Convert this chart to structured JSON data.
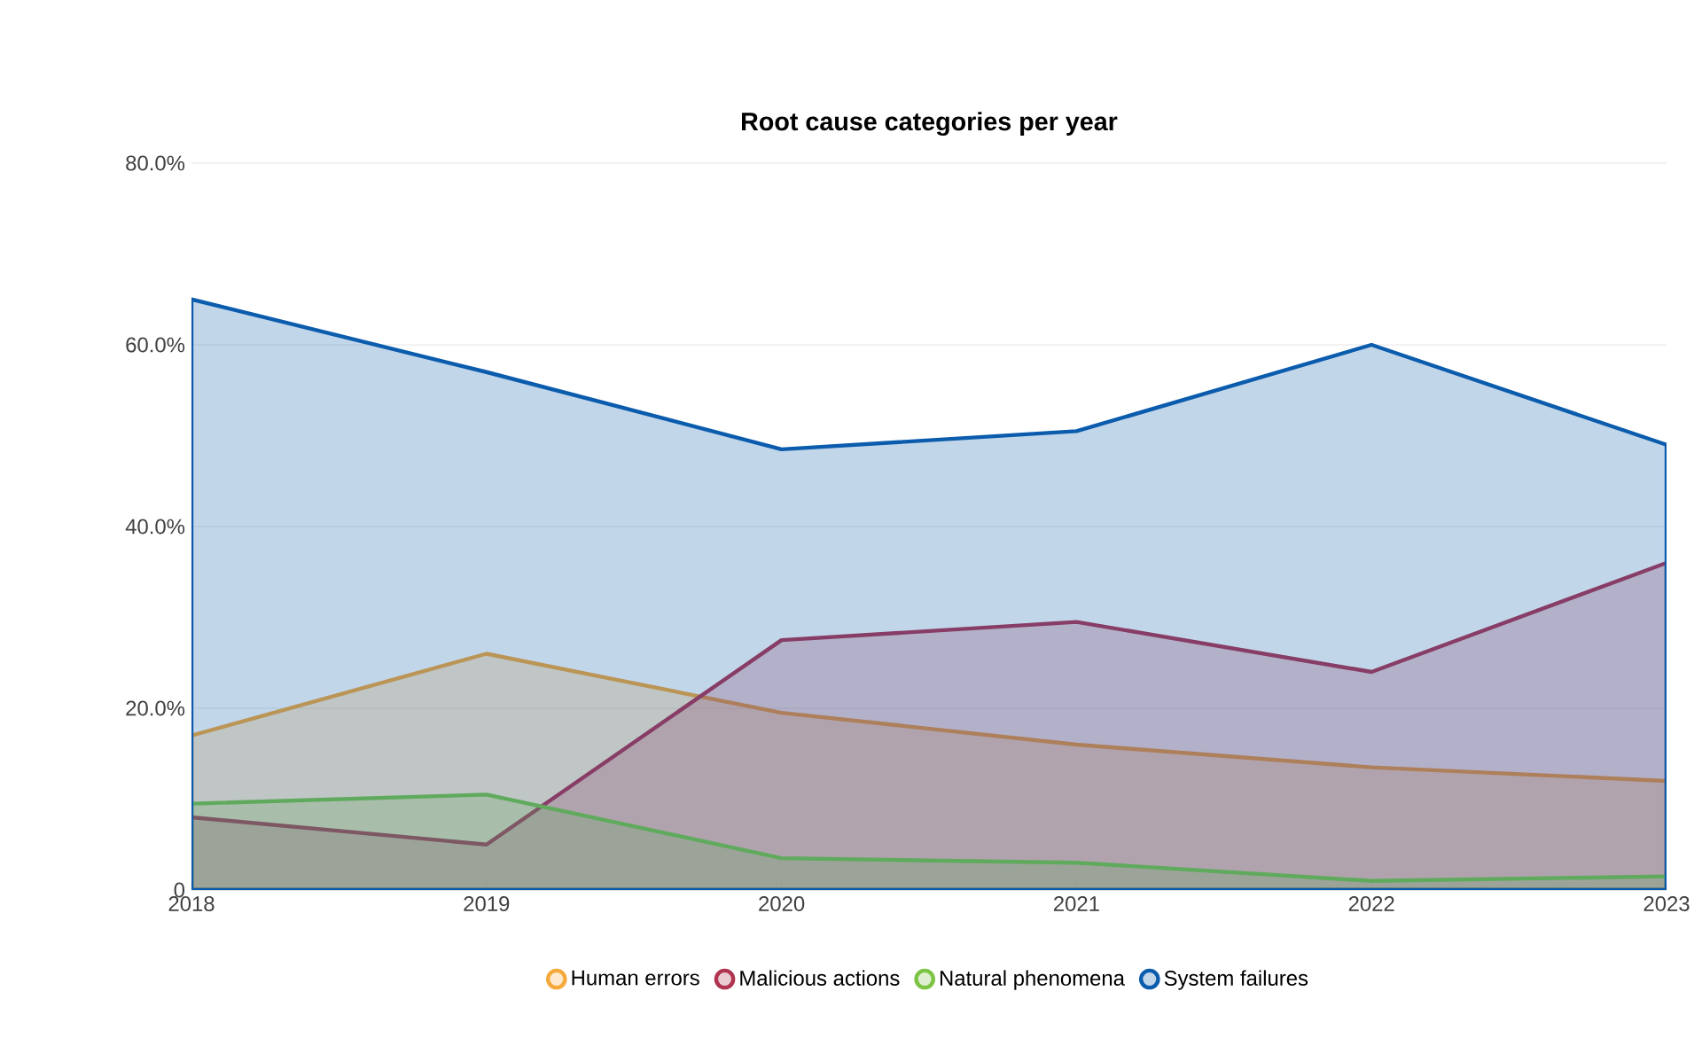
{
  "chart_data": {
    "type": "area",
    "title": "Root cause categories per year",
    "categories": [
      "2018",
      "2019",
      "2020",
      "2021",
      "2022",
      "2023"
    ],
    "series": [
      {
        "name": "Human errors",
        "color": "#f5a93a",
        "values": [
          17,
          26,
          19.5,
          16,
          13.5,
          12
        ]
      },
      {
        "name": "Malicious actions",
        "color": "#b0334f",
        "values": [
          8,
          5,
          27.5,
          29.5,
          24,
          36
        ]
      },
      {
        "name": "Natural phenomena",
        "color": "#7cc443",
        "values": [
          9.5,
          10.5,
          3.5,
          3,
          1,
          1.5
        ]
      },
      {
        "name": "System failures",
        "color": "#0b5cad",
        "values": [
          65,
          57,
          48.5,
          50.5,
          60,
          49
        ]
      }
    ],
    "ylim": [
      0,
      80
    ],
    "yticks": [
      {
        "value": 0,
        "label": "0"
      },
      {
        "value": 20,
        "label": "20.0%"
      },
      {
        "value": 40,
        "label": "40.0%"
      },
      {
        "value": 60,
        "label": "60.0%"
      },
      {
        "value": 80,
        "label": "80.0%"
      }
    ],
    "grid": "y",
    "legend": "bottom"
  }
}
